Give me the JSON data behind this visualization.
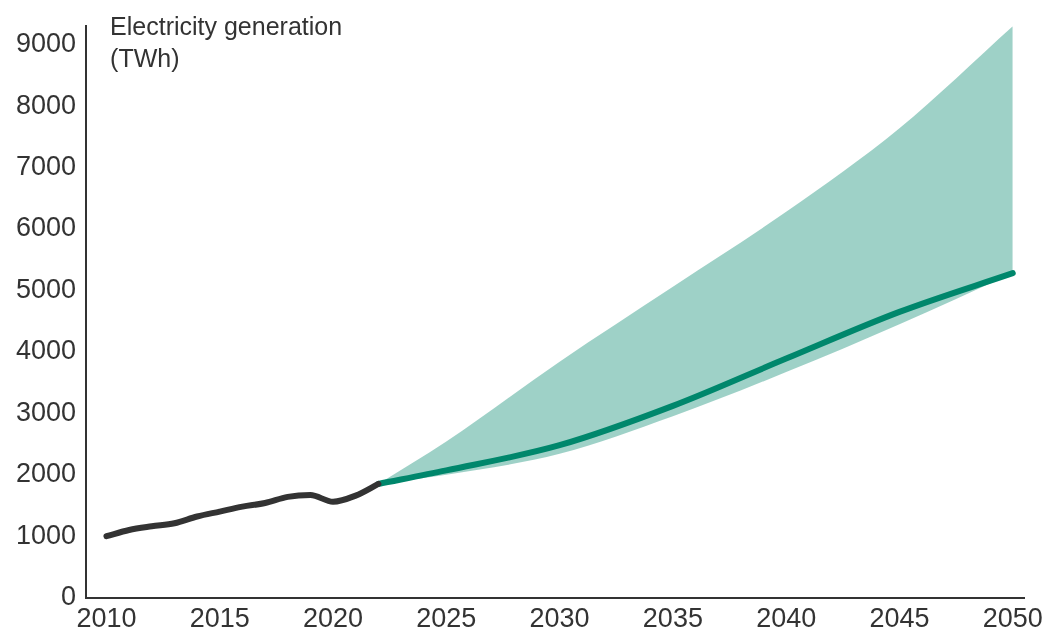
{
  "chart_data": {
    "type": "line",
    "ylabel": "Electricity generation (TWh)",
    "series": [
      {
        "color": "#333333",
        "x": [
          2010,
          2011,
          2012,
          2013,
          2014,
          2015,
          2016,
          2017,
          2018,
          2019,
          2020,
          2021,
          2022
        ],
        "values": [
          1000,
          1100,
          1160,
          1210,
          1320,
          1400,
          1480,
          1540,
          1640,
          1670,
          1560,
          1660,
          1850
        ]
      },
      {
        "color": "#00876c",
        "x": [
          2022,
          2025,
          2030,
          2035,
          2040,
          2045,
          2050
        ],
        "values": [
          1850,
          2070,
          2480,
          3120,
          3890,
          4650,
          5280
        ],
        "lower": [
          1850,
          2000,
          2340,
          2950,
          3670,
          4450,
          5280
        ],
        "upper": [
          1850,
          2540,
          3840,
          5060,
          6280,
          7640,
          9300
        ]
      }
    ],
    "xlim": [
      2009.1,
      2050.5
    ],
    "xticks": [
      2010,
      2015,
      2020,
      2025,
      2030,
      2035,
      2040,
      2045,
      2050
    ],
    "ylim": [
      0,
      9300
    ],
    "yticks": [
      0,
      1000,
      2000,
      3000,
      4000,
      5000,
      6000,
      7000,
      8000,
      9000
    ],
    "grid": false,
    "legend": false,
    "marker": "none",
    "line_style": "solid"
  }
}
